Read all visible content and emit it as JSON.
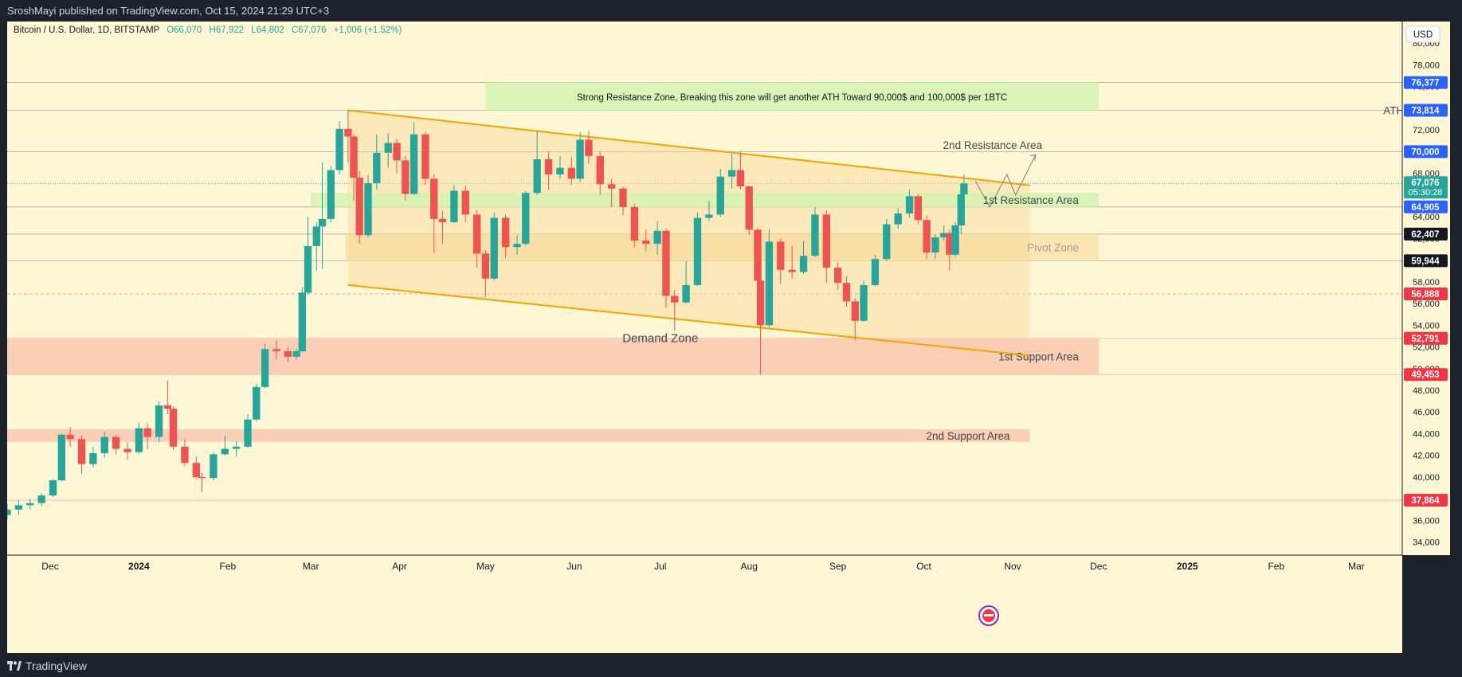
{
  "publisher_line": "SroshMayi published on TradingView.com, Oct 15, 2024 21:29 UTC+3",
  "footer_brand": "TradingView",
  "colors": {
    "background": "#fef7d5",
    "up": "#26a69a",
    "down": "#ef5350",
    "channel": "#f7a400",
    "resistance_zone": "#d4f2b0",
    "support_zone": "#f9c8b0",
    "pivot_zone": "#f9d89a"
  },
  "chart_data": {
    "type": "candlestick",
    "symbol": "Bitcoin / U.S. Dollar, 1D, BITSTAMP",
    "ohlc": {
      "open": "O66,070",
      "high": "H67,922",
      "low": "L64,802",
      "close": "C67,076",
      "change": "+1,006 (+1.52%)"
    },
    "currency": "USD",
    "ylim": [
      32800,
      82000
    ],
    "y_ticks": [
      34000,
      36000,
      38000,
      40000,
      42000,
      44000,
      46000,
      48000,
      50000,
      52000,
      54000,
      56000,
      58000,
      60000,
      62000,
      64000,
      66000,
      68000,
      70000,
      72000,
      74000,
      76000,
      78000,
      80000
    ],
    "x_ticks": [
      "Dec",
      "2024",
      "Feb",
      "Mar",
      "Apr",
      "May",
      "Jun",
      "Jul",
      "Aug",
      "Sep",
      "Oct",
      "Nov",
      "Dec",
      "2025",
      "Feb",
      "Mar"
    ],
    "x_tick_dates": [
      "2023-12-01",
      "2024-01-01",
      "2024-02-01",
      "2024-03-01",
      "2024-04-01",
      "2024-05-01",
      "2024-06-01",
      "2024-07-01",
      "2024-08-01",
      "2024-09-01",
      "2024-10-01",
      "2024-11-01",
      "2024-12-01",
      "2025-01-01",
      "2025-02-01",
      "2025-03-01"
    ],
    "date_range": [
      "2023-11-16",
      "2025-03-17"
    ],
    "price_labels": [
      {
        "value": 76377,
        "label": "76,377",
        "color": "#2962ff"
      },
      {
        "value": 73814,
        "label": "73,814",
        "color": "#2962ff"
      },
      {
        "value": 70000,
        "label": "70,000",
        "color": "#2962ff"
      },
      {
        "value": 67076,
        "label": "67,076",
        "sublabel": "05:30:28",
        "color": "#26a69a"
      },
      {
        "value": 64905,
        "label": "64,905",
        "color": "#2962ff"
      },
      {
        "value": 62407,
        "label": "62,407",
        "color": "#131722"
      },
      {
        "value": 59944,
        "label": "59,944",
        "color": "#131722"
      },
      {
        "value": 56888,
        "label": "56,888",
        "color": "#f23645"
      },
      {
        "value": 52791,
        "label": "52,791",
        "color": "#f23645"
      },
      {
        "value": 49453,
        "label": "49,453",
        "color": "#f23645"
      },
      {
        "value": 37864,
        "label": "37,864",
        "color": "#f23645"
      }
    ],
    "zones": [
      {
        "name": "Strong Resistance Zone, Breaking this zone will get another ATH Toward 90,000$ and  100,000$ per 1BTC",
        "from": "2024-05-01",
        "to": "2024-12-01",
        "low": 73814,
        "high": 76377,
        "kind": "resistance",
        "label_align": "center"
      },
      {
        "name": "1st Resistance Area",
        "from": "2024-03-01",
        "to": "2024-12-01",
        "low": 64905,
        "high": 66200,
        "kind": "resistance",
        "label_align": "right"
      },
      {
        "name": "Pivot Zone",
        "from": "2024-03-13",
        "to": "2024-12-01",
        "low": 59944,
        "high": 62407,
        "kind": "pivot",
        "label_align": "right"
      },
      {
        "name": "1st Support Area",
        "from": "2023-11-16",
        "to": "2024-12-01",
        "low": 49453,
        "high": 52791,
        "kind": "support",
        "label_align": "right"
      },
      {
        "name": "2nd Support Area",
        "from": "2023-11-16",
        "to": "2024-11-07",
        "low": 43250,
        "high": 44400,
        "kind": "support",
        "label_align": "right"
      }
    ],
    "annotations": [
      {
        "text": "ATH",
        "date": "2025-03-14",
        "value": 73814
      },
      {
        "text": "2nd Resistance Area",
        "date": "2024-10-25",
        "value": 70600
      },
      {
        "text": "Demand Zone",
        "date": "2024-07-01",
        "value": 52800
      }
    ],
    "channel": {
      "upper": [
        [
          "2024-03-14",
          73814
        ],
        [
          "2024-11-07",
          66900
        ]
      ],
      "lower": [
        [
          "2024-03-14",
          57700
        ],
        [
          "2024-11-07",
          51200
        ]
      ]
    },
    "projection": [
      [
        "2024-10-19",
        67300
      ],
      [
        "2024-10-24",
        64900
      ],
      [
        "2024-10-30",
        67900
      ],
      [
        "2024-11-02",
        66000
      ],
      [
        "2024-11-09",
        69700
      ]
    ],
    "candles": [
      [
        "2023-11-16",
        36500,
        37500,
        36100,
        37000
      ],
      [
        "2023-11-20",
        37000,
        37900,
        36500,
        37400
      ],
      [
        "2023-11-24",
        37400,
        38000,
        37000,
        37600
      ],
      [
        "2023-11-28",
        37600,
        38500,
        37300,
        38300
      ],
      [
        "2023-12-02",
        38300,
        39800,
        38200,
        39700
      ],
      [
        "2023-12-05",
        39700,
        44000,
        39600,
        43900
      ],
      [
        "2023-12-08",
        43900,
        44600,
        42800,
        43500
      ],
      [
        "2023-12-12",
        43500,
        43800,
        40300,
        41200
      ],
      [
        "2023-12-16",
        41200,
        42800,
        40900,
        42200
      ],
      [
        "2023-12-20",
        42200,
        44200,
        41800,
        43700
      ],
      [
        "2023-12-24",
        43700,
        43900,
        42100,
        42600
      ],
      [
        "2023-12-28",
        42600,
        43200,
        41600,
        42300
      ],
      [
        "2024-01-01",
        42300,
        45000,
        42100,
        44500
      ],
      [
        "2024-01-04",
        44500,
        44900,
        42600,
        43700
      ],
      [
        "2024-01-08",
        43700,
        47000,
        43200,
        46600
      ],
      [
        "2024-01-11",
        46600,
        48900,
        45800,
        46300
      ],
      [
        "2024-01-13",
        46300,
        46500,
        42500,
        42800
      ],
      [
        "2024-01-17",
        42800,
        43500,
        41000,
        41300
      ],
      [
        "2024-01-21",
        41300,
        41900,
        39800,
        40000
      ],
      [
        "2024-01-23",
        40000,
        40400,
        38600,
        39900
      ],
      [
        "2024-01-27",
        39900,
        42300,
        39700,
        42100
      ],
      [
        "2024-01-31",
        42100,
        43800,
        42000,
        42600
      ],
      [
        "2024-02-04",
        42600,
        43300,
        41900,
        42800
      ],
      [
        "2024-02-08",
        42800,
        45800,
        42700,
        45300
      ],
      [
        "2024-02-11",
        45300,
        48600,
        45100,
        48300
      ],
      [
        "2024-02-14",
        48300,
        52300,
        48200,
        51800
      ],
      [
        "2024-02-18",
        51800,
        52600,
        50800,
        51600
      ],
      [
        "2024-02-22",
        51600,
        52000,
        50600,
        51100
      ],
      [
        "2024-02-25",
        51100,
        51800,
        50800,
        51600
      ],
      [
        "2024-02-27",
        51600,
        57500,
        51500,
        57000
      ],
      [
        "2024-02-29",
        57000,
        64000,
        56800,
        61300
      ],
      [
        "2024-03-03",
        61300,
        63500,
        59000,
        63100
      ],
      [
        "2024-03-05",
        63100,
        69000,
        59200,
        63800
      ],
      [
        "2024-03-08",
        63800,
        68700,
        63500,
        68300
      ],
      [
        "2024-03-11",
        68300,
        72800,
        67900,
        72100
      ],
      [
        "2024-03-14",
        72100,
        73814,
        69000,
        71400
      ],
      [
        "2024-03-16",
        71400,
        71600,
        65500,
        67600
      ],
      [
        "2024-03-18",
        67600,
        68200,
        61500,
        62300
      ],
      [
        "2024-03-21",
        62300,
        67800,
        62100,
        67100
      ],
      [
        "2024-03-24",
        67100,
        71600,
        66500,
        69900
      ],
      [
        "2024-03-28",
        69900,
        71700,
        68500,
        70800
      ],
      [
        "2024-03-31",
        70800,
        71200,
        68000,
        69200
      ],
      [
        "2024-04-03",
        69200,
        69600,
        65500,
        66100
      ],
      [
        "2024-04-06",
        66100,
        72700,
        66000,
        71600
      ],
      [
        "2024-04-10",
        71600,
        71800,
        66900,
        67500
      ],
      [
        "2024-04-13",
        67500,
        67900,
        60700,
        63800
      ],
      [
        "2024-04-16",
        63800,
        64500,
        61500,
        63500
      ],
      [
        "2024-04-20",
        63500,
        66900,
        63400,
        66400
      ],
      [
        "2024-04-24",
        66400,
        66900,
        63500,
        64200
      ],
      [
        "2024-04-28",
        64200,
        64600,
        59300,
        60600
      ],
      [
        "2024-05-01",
        60600,
        60900,
        56600,
        58300
      ],
      [
        "2024-05-04",
        58300,
        64400,
        58100,
        63900
      ],
      [
        "2024-05-08",
        63900,
        64200,
        60200,
        61200
      ],
      [
        "2024-05-12",
        61200,
        62300,
        60500,
        61500
      ],
      [
        "2024-05-15",
        61500,
        66400,
        61300,
        66200
      ],
      [
        "2024-05-19",
        66200,
        71900,
        66000,
        69300
      ],
      [
        "2024-05-23",
        69300,
        70000,
        66500,
        67900
      ],
      [
        "2024-05-27",
        67900,
        69600,
        67500,
        68500
      ],
      [
        "2024-05-31",
        68500,
        69500,
        66900,
        67500
      ],
      [
        "2024-06-03",
        67500,
        71800,
        67200,
        71100
      ],
      [
        "2024-06-06",
        71100,
        71900,
        68900,
        69600
      ],
      [
        "2024-06-10",
        69600,
        70000,
        66000,
        67000
      ],
      [
        "2024-06-14",
        67000,
        67500,
        64900,
        66600
      ],
      [
        "2024-06-18",
        66600,
        66800,
        64100,
        64900
      ],
      [
        "2024-06-22",
        64900,
        65200,
        61200,
        61800
      ],
      [
        "2024-06-26",
        61800,
        62800,
        60800,
        61500
      ],
      [
        "2024-06-30",
        61500,
        63600,
        60500,
        62700
      ],
      [
        "2024-07-03",
        62700,
        62900,
        55600,
        56700
      ],
      [
        "2024-07-06",
        56700,
        57200,
        53500,
        56100
      ],
      [
        "2024-07-10",
        56100,
        59900,
        56000,
        57700
      ],
      [
        "2024-07-14",
        57700,
        64400,
        57600,
        63900
      ],
      [
        "2024-07-18",
        63900,
        65500,
        63600,
        64200
      ],
      [
        "2024-07-22",
        64200,
        68400,
        64000,
        67700
      ],
      [
        "2024-07-26",
        67700,
        69800,
        66600,
        68300
      ],
      [
        "2024-07-29",
        68300,
        70000,
        66500,
        66800
      ],
      [
        "2024-08-01",
        66800,
        66900,
        62300,
        62800
      ],
      [
        "2024-08-04",
        62800,
        63000,
        55800,
        58100
      ],
      [
        "2024-08-05",
        58100,
        58400,
        49500,
        54000
      ],
      [
        "2024-08-08",
        54000,
        62800,
        53800,
        61700
      ],
      [
        "2024-08-12",
        61700,
        62000,
        57800,
        59100
      ],
      [
        "2024-08-16",
        59100,
        61300,
        58300,
        58900
      ],
      [
        "2024-08-20",
        58900,
        61800,
        58700,
        60400
      ],
      [
        "2024-08-24",
        60400,
        64900,
        60300,
        64200
      ],
      [
        "2024-08-28",
        64200,
        64600,
        57900,
        59300
      ],
      [
        "2024-09-01",
        59300,
        59800,
        57300,
        57900
      ],
      [
        "2024-09-04",
        57900,
        58500,
        55700,
        56200
      ],
      [
        "2024-09-07",
        56200,
        56500,
        52600,
        54400
      ],
      [
        "2024-09-10",
        54400,
        58100,
        54300,
        57700
      ],
      [
        "2024-09-14",
        57700,
        60500,
        57600,
        60100
      ],
      [
        "2024-09-18",
        60100,
        63800,
        59900,
        63300
      ],
      [
        "2024-09-22",
        63300,
        64800,
        62900,
        64300
      ],
      [
        "2024-09-26",
        64300,
        66500,
        63900,
        65900
      ],
      [
        "2024-09-29",
        65900,
        66100,
        63300,
        63700
      ],
      [
        "2024-10-02",
        63700,
        64100,
        60100,
        60700
      ],
      [
        "2024-10-05",
        60700,
        62400,
        60100,
        62100
      ],
      [
        "2024-10-08",
        62100,
        63200,
        61800,
        62500
      ],
      [
        "2024-10-10",
        62500,
        62800,
        59000,
        60500
      ],
      [
        "2024-10-12",
        60500,
        63500,
        60300,
        63200
      ],
      [
        "2024-10-14",
        63200,
        66500,
        62400,
        66070
      ],
      [
        "2024-10-15",
        66070,
        67922,
        64802,
        67076
      ]
    ]
  }
}
